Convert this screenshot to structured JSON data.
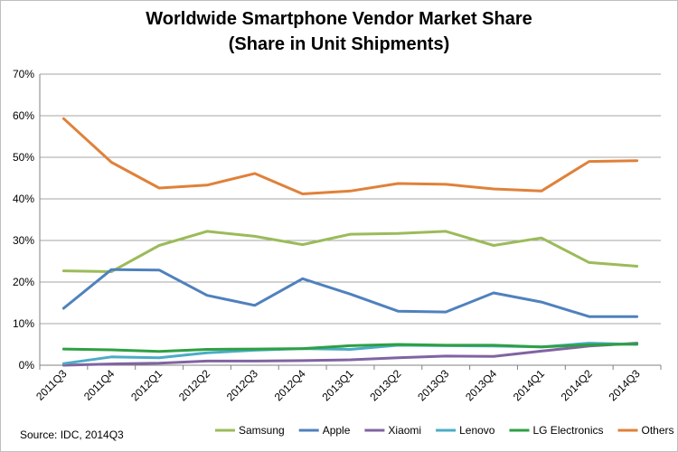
{
  "chart_data": {
    "type": "line",
    "title_line1": "Worldwide Smartphone Vendor Market Share",
    "title_line2": "(Share in Unit Shipments)",
    "xlabel": "",
    "ylabel": "",
    "ylim": [
      0,
      70
    ],
    "y_ticks": [
      "0%",
      "10%",
      "20%",
      "30%",
      "40%",
      "50%",
      "60%",
      "70%"
    ],
    "categories": [
      "2011Q3",
      "2011Q4",
      "2012Q1",
      "2012Q2",
      "2012Q3",
      "2012Q4",
      "2013Q1",
      "2013Q2",
      "2013Q3",
      "2013Q4",
      "2014Q1",
      "2014Q2",
      "2014Q3"
    ],
    "grid": true,
    "legend_position": "bottom",
    "series": [
      {
        "name": "Samsung",
        "color": "#9bbb59",
        "values": [
          22.7,
          22.5,
          28.8,
          32.2,
          31.0,
          29.0,
          31.5,
          31.7,
          32.2,
          28.8,
          30.6,
          24.7,
          23.8
        ]
      },
      {
        "name": "Apple",
        "color": "#4f81bd",
        "values": [
          13.7,
          23.0,
          22.9,
          16.8,
          14.4,
          20.8,
          17.1,
          13.0,
          12.8,
          17.4,
          15.2,
          11.7,
          11.7
        ]
      },
      {
        "name": "Xiaomi",
        "color": "#8064a2",
        "values": [
          0.0,
          0.3,
          0.5,
          1.0,
          1.0,
          1.1,
          1.3,
          1.8,
          2.2,
          2.1,
          3.4,
          4.6,
          5.3
        ]
      },
      {
        "name": "Lenovo",
        "color": "#4bacc6",
        "values": [
          0.4,
          2.0,
          1.8,
          3.0,
          3.6,
          4.0,
          3.8,
          4.8,
          4.7,
          4.6,
          4.4,
          5.3,
          5.0
        ]
      },
      {
        "name": "LG Electronics",
        "color": "#2ea043",
        "values": [
          3.9,
          3.7,
          3.3,
          3.8,
          3.9,
          4.0,
          4.7,
          5.0,
          4.8,
          4.8,
          4.4,
          4.9,
          5.1
        ]
      },
      {
        "name": "Others",
        "color": "#e0813a",
        "values": [
          59.3,
          48.8,
          42.6,
          43.3,
          46.1,
          41.2,
          41.9,
          43.7,
          43.5,
          42.4,
          41.9,
          49.0,
          49.2
        ]
      }
    ]
  },
  "source_text": "Source: IDC, 2014Q3"
}
